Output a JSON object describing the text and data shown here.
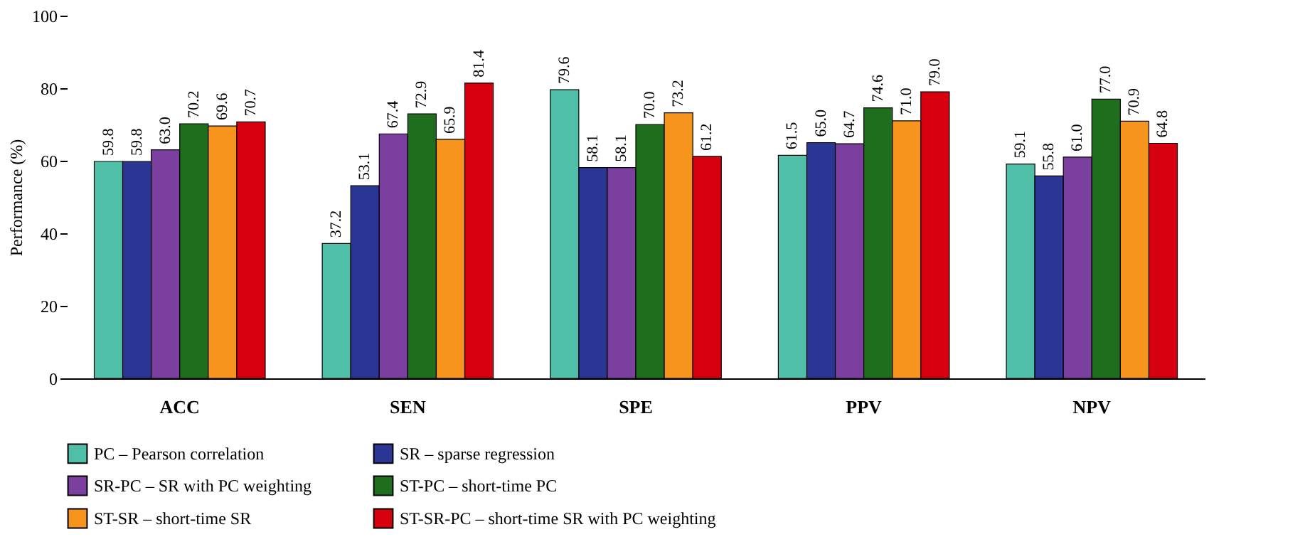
{
  "chart_data": {
    "type": "bar",
    "ylabel": "Performance (%)",
    "categories": [
      "ACC",
      "SEN",
      "SPE",
      "PPV",
      "NPV"
    ],
    "series": [
      {
        "name": "PC – Pearson correlation",
        "color": "#4fbfa8",
        "values": [
          59.8,
          37.2,
          79.6,
          61.5,
          59.1
        ],
        "value_labels": [
          "59.8",
          "37.2",
          "79.6",
          "61.5",
          "59.1"
        ]
      },
      {
        "name": "SR – sparse regression",
        "color": "#2b3593",
        "values": [
          59.8,
          53.1,
          58.1,
          65.0,
          55.8
        ],
        "value_labels": [
          "59.8",
          "53.1",
          "58.1",
          "65.0",
          "55.8"
        ]
      },
      {
        "name": "SR-PC – SR with PC weighting",
        "color": "#7b3fa0",
        "values": [
          63.0,
          67.4,
          58.1,
          64.7,
          61.0
        ],
        "value_labels": [
          "63.0",
          "67.4",
          "58.1",
          "64.7",
          "61.0"
        ]
      },
      {
        "name": "ST-PC – short-time PC",
        "color": "#1e6e1e",
        "values": [
          70.2,
          72.9,
          70.0,
          74.6,
          77.0
        ],
        "value_labels": [
          "70.2",
          "72.9",
          "70.0",
          "74.6",
          "77.0"
        ]
      },
      {
        "name": "ST-SR – short-time SR",
        "color": "#f7941d",
        "values": [
          69.6,
          65.9,
          73.2,
          71.0,
          70.9
        ],
        "value_labels": [
          "69.6",
          "65.9",
          "73.2",
          "71.0",
          "70.9"
        ]
      },
      {
        "name": "ST-SR-PC – short-time SR with PC weighting",
        "color": "#d7000f",
        "values": [
          70.7,
          81.4,
          61.2,
          79.0,
          64.8
        ],
        "value_labels": [
          "70.7",
          "81.4",
          "61.2",
          "79.0",
          "64.8"
        ]
      }
    ],
    "ylim": [
      0,
      100
    ],
    "yticks": [
      0,
      20,
      40,
      60,
      80,
      100
    ],
    "grid": false,
    "legend": "bottom"
  }
}
